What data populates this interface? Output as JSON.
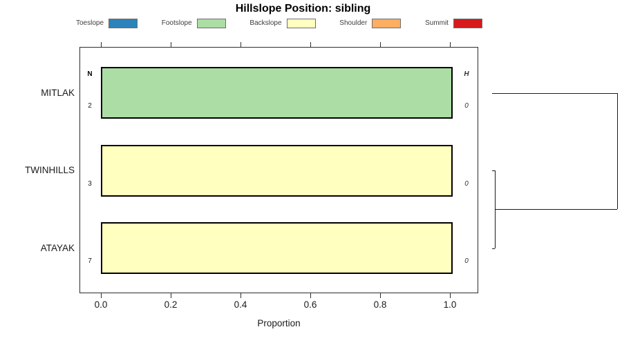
{
  "title": "Hillslope Position: sibling",
  "legend": {
    "items": [
      {
        "label": "Toeslope",
        "color": "#2B83BA"
      },
      {
        "label": "Footslope",
        "color": "#ABDDA4"
      },
      {
        "label": "Backslope",
        "color": "#FFFFBF"
      },
      {
        "label": "Shoulder",
        "color": "#FDAE61"
      },
      {
        "label": "Summit",
        "color": "#D7191C"
      }
    ]
  },
  "columns": {
    "n_header": "N",
    "h_header": "H"
  },
  "x_axis": {
    "label": "Proportion",
    "ticks": [
      "0.0",
      "0.2",
      "0.4",
      "0.6",
      "0.8",
      "1.0"
    ],
    "tick_values": [
      0,
      0.2,
      0.4,
      0.6,
      0.8,
      1.0
    ]
  },
  "chart_data": {
    "type": "bar",
    "orientation": "horizontal",
    "stacked": true,
    "title": "Hillslope Position: sibling",
    "xlabel": "Proportion",
    "xlim": [
      0,
      1
    ],
    "grid": false,
    "legend_position": "top",
    "categories": [
      "MITLAK",
      "TWINHILLS",
      "ATAYAK"
    ],
    "classes": [
      "Toeslope",
      "Footslope",
      "Backslope",
      "Shoulder",
      "Summit"
    ],
    "rows": [
      {
        "label": "MITLAK",
        "n": "2",
        "shannon_h": "0",
        "segments": [
          {
            "class": "Footslope",
            "proportion": 1.0
          }
        ]
      },
      {
        "label": "TWINHILLS",
        "n": "3",
        "shannon_h": "0",
        "segments": [
          {
            "class": "Backslope",
            "proportion": 1.0
          }
        ]
      },
      {
        "label": "ATAYAK",
        "n": "7",
        "shannon_h": "0",
        "segments": [
          {
            "class": "Backslope",
            "proportion": 1.0
          }
        ]
      }
    ],
    "dendrogram": {
      "height": 1.0,
      "children": [
        {
          "leaf": "MITLAK"
        },
        {
          "height": 0.02,
          "children": [
            {
              "leaf": "TWINHILLS"
            },
            {
              "leaf": "ATAYAK"
            }
          ]
        }
      ]
    }
  }
}
